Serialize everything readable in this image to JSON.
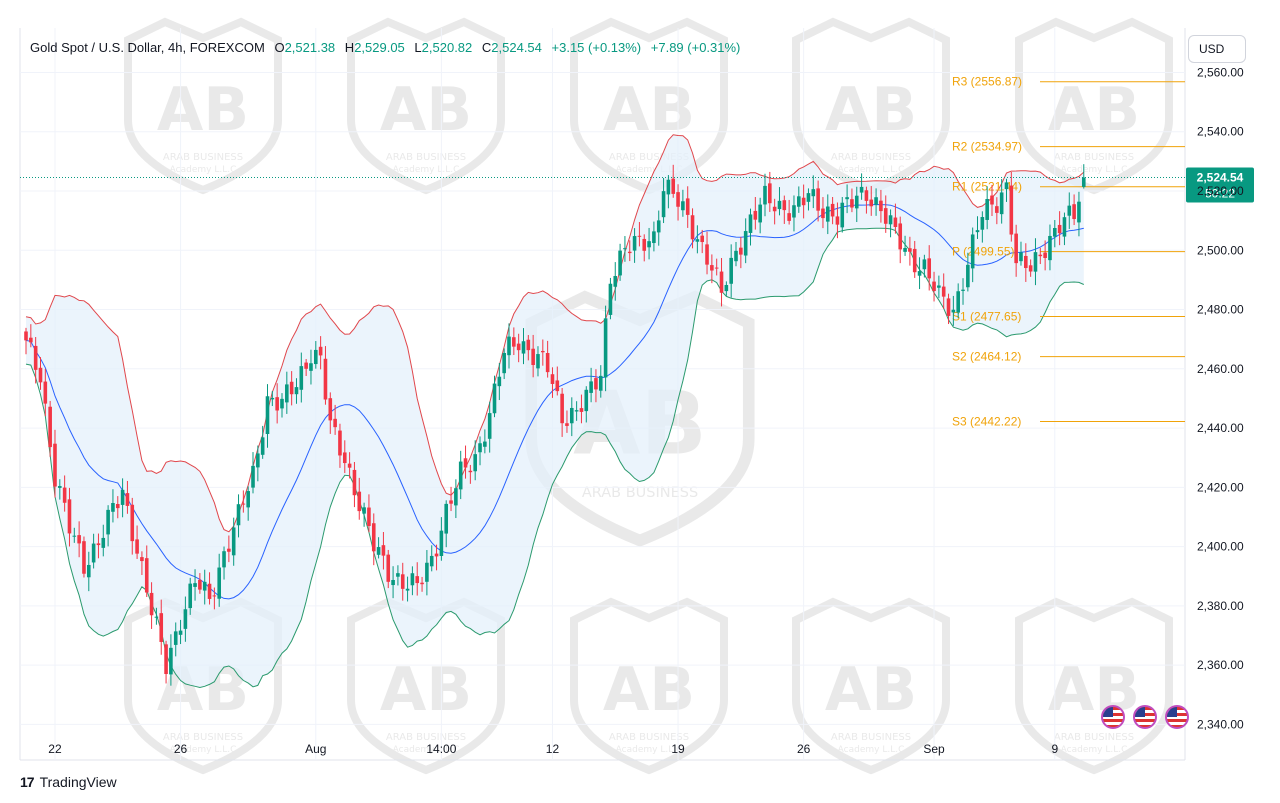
{
  "legend": {
    "symbol": "Gold Spot / U.S. Dollar, 4h, FOREXCOM",
    "open_label": "O",
    "open": "2,521.38",
    "high_label": "H",
    "high": "2,529.05",
    "low_label": "L",
    "low": "2,520.82",
    "close_label": "C",
    "close": "2,524.54",
    "change": "+3.15 (+0.13%)",
    "change2": "+7.89 (+0.31%)"
  },
  "currency": "USD",
  "footer": {
    "logo": "17",
    "brand": "TradingView"
  },
  "watermark": {
    "logo_letters": "AB",
    "line1": "ARAB BUSINESS",
    "line2": "Academy L.L.C"
  },
  "colors": {
    "up": "#089981",
    "down": "#f23645",
    "upper_band": "#e0474c",
    "lower_band": "#2b9a6e",
    "basis": "#2962ff",
    "pivot": "#f0a30a",
    "band_fill": "#e3f0fb"
  },
  "chart_data": {
    "type": "candlestick",
    "title": "Gold Spot / U.S. Dollar, 4h, FOREXCOM",
    "ylim": [
      2328,
      2575
    ],
    "y_ticks": [
      "2,560.00",
      "2,540.00",
      "2,520.00",
      "2,500.00",
      "2,480.00",
      "2,460.00",
      "2,440.00",
      "2,420.00",
      "2,400.00",
      "2,380.00",
      "2,360.00",
      "2,340.00"
    ],
    "y_tick_values": [
      2560,
      2540,
      2520,
      2500,
      2480,
      2460,
      2440,
      2420,
      2400,
      2380,
      2360,
      2340
    ],
    "x_ticks": [
      "22",
      "26",
      "Aug",
      "14:00",
      "12",
      "19",
      "26",
      "Sep",
      "9"
    ],
    "x_tick_index": [
      6,
      32,
      60,
      86,
      109,
      135,
      161,
      188,
      213
    ],
    "last_price": {
      "value": 2524.54,
      "label": "2,524.54",
      "countdown": "50:22"
    },
    "pivots": [
      {
        "label": "R3 (2556.87)",
        "value": 2556.87
      },
      {
        "label": "R2 (2534.97)",
        "value": 2534.97
      },
      {
        "label": "R1 (2521.44)",
        "value": 2521.44
      },
      {
        "label": "P (2499.55)",
        "value": 2499.55
      },
      {
        "label": "S1 (2477.65)",
        "value": 2477.65
      },
      {
        "label": "S2 (2464.12)",
        "value": 2464.12
      },
      {
        "label": "S3 (2442.22)",
        "value": 2442.22
      }
    ],
    "close_keypoints": [
      [
        0,
        2468
      ],
      [
        3,
        2458
      ],
      [
        6,
        2424
      ],
      [
        9,
        2406
      ],
      [
        12,
        2394
      ],
      [
        15,
        2402
      ],
      [
        18,
        2412
      ],
      [
        20,
        2418
      ],
      [
        23,
        2400
      ],
      [
        26,
        2378
      ],
      [
        29,
        2360
      ],
      [
        32,
        2376
      ],
      [
        35,
        2388
      ],
      [
        38,
        2382
      ],
      [
        41,
        2398
      ],
      [
        44,
        2410
      ],
      [
        47,
        2424
      ],
      [
        50,
        2450
      ],
      [
        53,
        2448
      ],
      [
        56,
        2455
      ],
      [
        59,
        2466
      ],
      [
        61,
        2463
      ],
      [
        63,
        2440
      ],
      [
        66,
        2430
      ],
      [
        69,
        2415
      ],
      [
        72,
        2400
      ],
      [
        75,
        2392
      ],
      [
        78,
        2388
      ],
      [
        81,
        2386
      ],
      [
        84,
        2396
      ],
      [
        87,
        2412
      ],
      [
        90,
        2424
      ],
      [
        93,
        2430
      ],
      [
        96,
        2445
      ],
      [
        99,
        2465
      ],
      [
        102,
        2470
      ],
      [
        105,
        2465
      ],
      [
        108,
        2460
      ],
      [
        111,
        2444
      ],
      [
        114,
        2446
      ],
      [
        117,
        2452
      ],
      [
        119,
        2458
      ],
      [
        121,
        2492
      ],
      [
        124,
        2500
      ],
      [
        127,
        2502
      ],
      [
        130,
        2505
      ],
      [
        132,
        2522
      ],
      [
        135,
        2516
      ],
      [
        138,
        2508
      ],
      [
        141,
        2498
      ],
      [
        144,
        2485
      ],
      [
        147,
        2500
      ],
      [
        150,
        2510
      ],
      [
        153,
        2517
      ],
      [
        156,
        2515
      ],
      [
        159,
        2514
      ],
      [
        162,
        2518
      ],
      [
        165,
        2514
      ],
      [
        168,
        2512
      ],
      [
        171,
        2516
      ],
      [
        174,
        2520
      ],
      [
        177,
        2514
      ],
      [
        180,
        2505
      ],
      [
        183,
        2498
      ],
      [
        186,
        2494
      ],
      [
        189,
        2484
      ],
      [
        192,
        2480
      ],
      [
        195,
        2496
      ],
      [
        198,
        2512
      ],
      [
        201,
        2517
      ],
      [
        203,
        2522
      ],
      [
        205,
        2495
      ],
      [
        208,
        2494
      ],
      [
        211,
        2502
      ],
      [
        214,
        2508
      ],
      [
        217,
        2512
      ],
      [
        219,
        2524.54
      ]
    ]
  }
}
